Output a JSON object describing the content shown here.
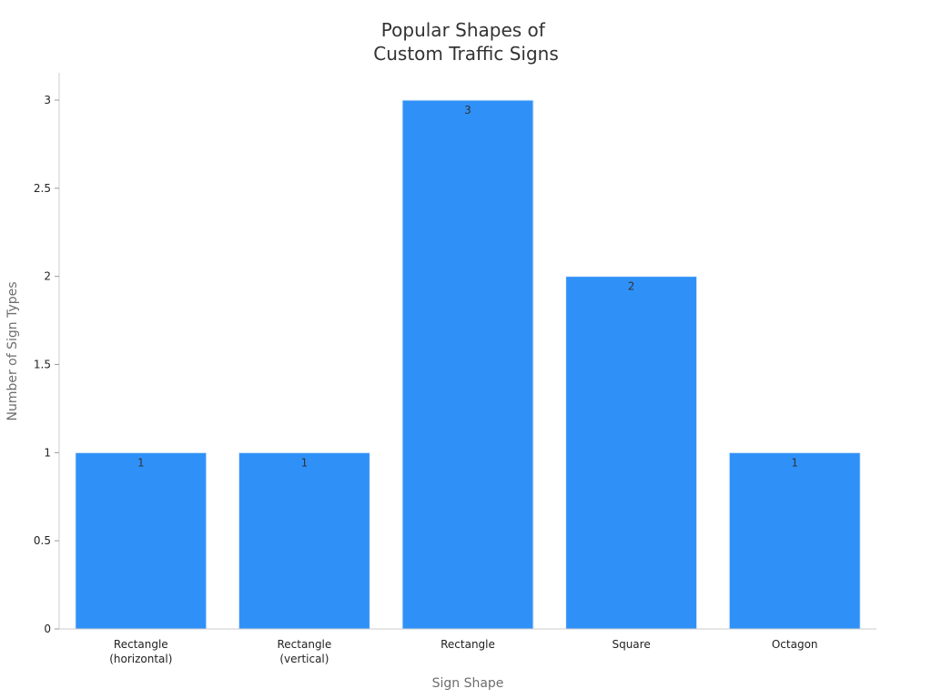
{
  "chart_data": {
    "type": "bar",
    "title": [
      "Popular Shapes of",
      "Custom Traffic Signs"
    ],
    "xlabel": "Sign Shape",
    "ylabel": "Number of Sign Types",
    "categories": [
      [
        "Rectangle",
        "(horizontal)"
      ],
      [
        "Rectangle",
        "(vertical)"
      ],
      [
        "Rectangle"
      ],
      [
        "Square"
      ],
      [
        "Octagon"
      ]
    ],
    "values": [
      1,
      1,
      3,
      2,
      1
    ],
    "data_labels": [
      "1",
      "1",
      "3",
      "2",
      "1"
    ],
    "ylim": [
      0,
      3.15
    ],
    "yticks": [
      0,
      0.5,
      1,
      1.5,
      2,
      2.5,
      3
    ],
    "ytick_labels": [
      "0",
      "0.5",
      "1",
      "1.5",
      "2",
      "2.5",
      "3"
    ],
    "bar_color": "#2f91f8",
    "grid": false,
    "legend": "none"
  }
}
